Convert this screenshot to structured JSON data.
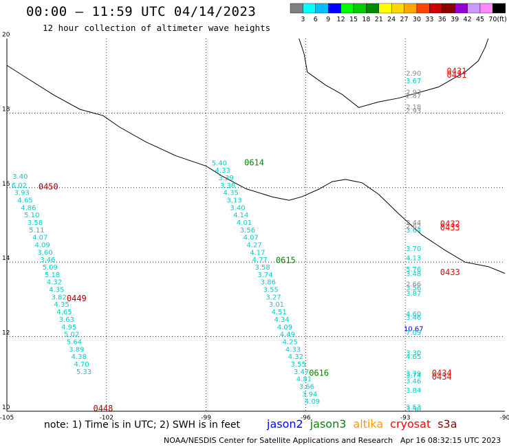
{
  "title": "00:00 – 11:59 UTC 04/14/2023",
  "subtitle": "12 hour collection of altimeter wave heights",
  "scale": {
    "unit": "(ft)",
    "ticks": [
      "3",
      "6",
      "9",
      "12",
      "15",
      "18",
      "21",
      "24",
      "27",
      "30",
      "33",
      "36",
      "39",
      "42",
      "45",
      "70"
    ],
    "colors": [
      "#7f7f7f",
      "#00ffff",
      "#00bfff",
      "#0000ff",
      "#00ff00",
      "#00cc00",
      "#008800",
      "#ffff00",
      "#ffd700",
      "#ffa500",
      "#ff4500",
      "#cc0000",
      "#8b0000",
      "#9400d3",
      "#cc99ff",
      "#ff88ff",
      "#000000"
    ]
  },
  "axes": {
    "lon_min": -105,
    "lon_max": -90,
    "lat_min": 10,
    "lat_max": 20,
    "lon_labels": [
      "-105",
      "-102",
      "-99",
      "-96",
      "-93",
      "-90"
    ],
    "lat_labels": [
      "10",
      "12",
      "14",
      "16",
      "18",
      "20"
    ]
  },
  "coast": [
    [
      -105,
      19.28
    ],
    [
      -104.4,
      18.94
    ],
    [
      -103.6,
      18.49
    ],
    [
      -102.8,
      18.1
    ],
    [
      -102.1,
      17.93
    ],
    [
      -101.6,
      17.62
    ],
    [
      -100.8,
      17.22
    ],
    [
      -99.9,
      16.85
    ],
    [
      -99.0,
      16.58
    ],
    [
      -98.5,
      16.3
    ],
    [
      -97.8,
      15.97
    ],
    [
      -97.0,
      15.75
    ],
    [
      -96.5,
      15.66
    ],
    [
      -96.1,
      15.76
    ],
    [
      -95.6,
      15.96
    ],
    [
      -95.2,
      16.16
    ],
    [
      -94.8,
      16.22
    ],
    [
      -94.3,
      16.13
    ],
    [
      -93.8,
      15.82
    ],
    [
      -93.2,
      15.3
    ],
    [
      -92.5,
      14.73
    ],
    [
      -91.8,
      14.32
    ],
    [
      -91.2,
      14.0
    ],
    [
      -90.5,
      13.88
    ],
    [
      -90,
      13.7
    ]
  ],
  "gulf_coast": [
    [
      -96.2,
      20.0
    ],
    [
      -96.05,
      19.6
    ],
    [
      -95.95,
      19.1
    ],
    [
      -95.4,
      18.75
    ],
    [
      -94.9,
      18.5
    ],
    [
      -94.4,
      18.15
    ],
    [
      -93.8,
      18.3
    ],
    [
      -93.2,
      18.4
    ],
    [
      -92.6,
      18.55
    ],
    [
      -92.0,
      18.7
    ],
    [
      -91.6,
      18.9
    ],
    [
      -91.2,
      19.1
    ],
    [
      -90.8,
      19.4
    ],
    [
      -90.6,
      19.75
    ],
    [
      -90.5,
      20.0
    ]
  ],
  "tracks": [
    {
      "name": "track-0450",
      "points": [
        {
          "lon": -104.6,
          "lat": 16.24,
          "v": "3.40"
        },
        {
          "lon": -104.63,
          "lat": 16.0,
          "v": "6.02"
        },
        {
          "lon": -104.55,
          "lat": 15.8,
          "v": "3.93"
        },
        {
          "lon": -104.45,
          "lat": 15.6,
          "v": "4.65"
        },
        {
          "lon": -104.35,
          "lat": 15.4,
          "v": "4.86"
        },
        {
          "lon": -104.25,
          "lat": 15.2,
          "v": "5.10"
        },
        {
          "lon": -104.15,
          "lat": 15.0,
          "v": "3.58"
        },
        {
          "lon": -104.1,
          "lat": 14.8,
          "v": "5.11"
        },
        {
          "lon": -104.0,
          "lat": 14.6,
          "v": "4.07"
        },
        {
          "lon": -103.93,
          "lat": 14.4,
          "v": "4.09"
        },
        {
          "lon": -103.85,
          "lat": 14.2,
          "v": "3.60"
        },
        {
          "lon": -103.77,
          "lat": 14.0,
          "v": "3.46"
        },
        {
          "lon": -103.7,
          "lat": 13.8,
          "v": "5.09"
        },
        {
          "lon": -103.63,
          "lat": 13.6,
          "v": "5.18"
        },
        {
          "lon": -103.57,
          "lat": 13.4,
          "v": "4.32"
        },
        {
          "lon": -103.5,
          "lat": 13.2,
          "v": "4.35"
        },
        {
          "lon": -103.43,
          "lat": 13.0,
          "v": "3.82"
        },
        {
          "lon": -103.35,
          "lat": 12.8,
          "v": "4.35"
        },
        {
          "lon": -103.27,
          "lat": 12.6,
          "v": "4.65"
        },
        {
          "lon": -103.2,
          "lat": 12.4,
          "v": "3.63"
        },
        {
          "lon": -103.13,
          "lat": 12.2,
          "v": "4.95"
        },
        {
          "lon": -103.05,
          "lat": 12.0,
          "v": "5.02"
        },
        {
          "lon": -102.97,
          "lat": 11.8,
          "v": "5.64"
        },
        {
          "lon": -102.9,
          "lat": 11.6,
          "v": "3.89"
        },
        {
          "lon": -102.83,
          "lat": 11.4,
          "v": "4.38"
        },
        {
          "lon": -102.75,
          "lat": 11.2,
          "v": "4.70"
        },
        {
          "lon": -102.68,
          "lat": 11.0,
          "v": "5.33"
        }
      ]
    },
    {
      "name": "track-0614",
      "points": [
        {
          "lon": -98.6,
          "lat": 16.6,
          "v": "5.40"
        },
        {
          "lon": -98.5,
          "lat": 16.4,
          "v": "4.33"
        },
        {
          "lon": -98.4,
          "lat": 16.2,
          "v": "3.39"
        },
        {
          "lon": -98.35,
          "lat": 16.0,
          "v": "3.38"
        },
        {
          "lon": -98.25,
          "lat": 15.8,
          "v": "4.35"
        },
        {
          "lon": -98.15,
          "lat": 15.6,
          "v": "3.13"
        },
        {
          "lon": -98.05,
          "lat": 15.4,
          "v": "3.40"
        },
        {
          "lon": -97.95,
          "lat": 15.2,
          "v": "4.14"
        },
        {
          "lon": -97.85,
          "lat": 15.0,
          "v": "4.01"
        },
        {
          "lon": -97.75,
          "lat": 14.8,
          "v": "3.56"
        },
        {
          "lon": -97.65,
          "lat": 14.6,
          "v": "4.07"
        },
        {
          "lon": -97.55,
          "lat": 14.4,
          "v": "4.27"
        },
        {
          "lon": -97.45,
          "lat": 14.2,
          "v": "4.17"
        },
        {
          "lon": -97.38,
          "lat": 14.0,
          "v": "4.77"
        },
        {
          "lon": -97.3,
          "lat": 13.8,
          "v": "3.58"
        },
        {
          "lon": -97.22,
          "lat": 13.6,
          "v": "3.74"
        },
        {
          "lon": -97.13,
          "lat": 13.4,
          "v": "3.86"
        },
        {
          "lon": -97.05,
          "lat": 13.2,
          "v": "3.55"
        },
        {
          "lon": -96.97,
          "lat": 13.0,
          "v": "3.27"
        },
        {
          "lon": -96.88,
          "lat": 12.8,
          "v": "3.01"
        },
        {
          "lon": -96.8,
          "lat": 12.6,
          "v": "4.51"
        },
        {
          "lon": -96.72,
          "lat": 12.4,
          "v": "4.34"
        },
        {
          "lon": -96.63,
          "lat": 12.2,
          "v": "4.09"
        },
        {
          "lon": -96.55,
          "lat": 12.0,
          "v": "4.49"
        },
        {
          "lon": -96.47,
          "lat": 11.8,
          "v": "4.25"
        },
        {
          "lon": -96.38,
          "lat": 11.6,
          "v": "4.33"
        },
        {
          "lon": -96.3,
          "lat": 11.4,
          "v": "4.32"
        },
        {
          "lon": -96.22,
          "lat": 11.2,
          "v": "3.55"
        },
        {
          "lon": -96.13,
          "lat": 11.0,
          "v": "3.47"
        },
        {
          "lon": -96.05,
          "lat": 10.8,
          "v": "4.81"
        },
        {
          "lon": -95.97,
          "lat": 10.6,
          "v": "3.66"
        },
        {
          "lon": -95.88,
          "lat": 10.4,
          "v": "3.94"
        },
        {
          "lon": -95.8,
          "lat": 10.2,
          "v": "4.09"
        }
      ]
    },
    {
      "name": "track-0432",
      "points": [
        {
          "lon": -92.75,
          "lat": 19.0,
          "v": "2.90",
          "c": "#888888"
        },
        {
          "lon": -92.75,
          "lat": 18.8,
          "v": "3.67"
        },
        {
          "lon": -92.75,
          "lat": 18.5,
          "v": "2.97",
          "c": "#888888"
        },
        {
          "lon": -92.75,
          "lat": 18.4,
          "v": "2.87",
          "c": "#888888"
        },
        {
          "lon": -92.75,
          "lat": 18.1,
          "v": "2.18",
          "c": "#888888"
        },
        {
          "lon": -92.75,
          "lat": 18.0,
          "v": "2.93",
          "c": "#888888"
        },
        {
          "lon": -92.75,
          "lat": 15.0,
          "v": "2.44",
          "c": "#888888"
        },
        {
          "lon": -92.75,
          "lat": 14.9,
          "v": "2.62",
          "c": "#888888"
        },
        {
          "lon": -92.75,
          "lat": 14.8,
          "v": "3.64"
        },
        {
          "lon": -92.75,
          "lat": 14.3,
          "v": "3.70"
        },
        {
          "lon": -92.75,
          "lat": 14.05,
          "v": "4.13"
        },
        {
          "lon": -92.75,
          "lat": 13.75,
          "v": "5.76"
        },
        {
          "lon": -92.75,
          "lat": 13.63,
          "v": "3.48"
        },
        {
          "lon": -92.75,
          "lat": 13.35,
          "v": "2.66",
          "c": "#888888"
        },
        {
          "lon": -92.75,
          "lat": 13.25,
          "v": "3.56"
        },
        {
          "lon": -92.75,
          "lat": 13.1,
          "v": "3.87"
        },
        {
          "lon": -92.75,
          "lat": 12.55,
          "v": "4.60"
        },
        {
          "lon": -92.75,
          "lat": 12.45,
          "v": "3.46"
        },
        {
          "lon": -92.75,
          "lat": 12.15,
          "v": "10.67",
          "c": "#0000cc"
        },
        {
          "lon": -92.75,
          "lat": 12.05,
          "v": "7.09"
        },
        {
          "lon": -92.75,
          "lat": 11.5,
          "v": "3.30"
        },
        {
          "lon": -92.75,
          "lat": 11.4,
          "v": "4.65"
        },
        {
          "lon": -92.75,
          "lat": 10.95,
          "v": "3.79"
        },
        {
          "lon": -92.75,
          "lat": 10.9,
          "v": "3.74"
        },
        {
          "lon": -92.75,
          "lat": 10.75,
          "v": "3.46"
        },
        {
          "lon": -92.75,
          "lat": 10.5,
          "v": "3.84"
        },
        {
          "lon": -92.75,
          "lat": 10.05,
          "v": "3.53"
        },
        {
          "lon": -92.75,
          "lat": 10.0,
          "v": "3.50"
        }
      ]
    }
  ],
  "time_labels": [
    {
      "text": "0450",
      "lon": -104.05,
      "lat": 15.95,
      "c": "#b00000"
    },
    {
      "text": "0449",
      "lon": -103.2,
      "lat": 12.95,
      "c": "#b00000"
    },
    {
      "text": "0448",
      "lon": -102.4,
      "lat": 10.0,
      "c": "#b00000"
    },
    {
      "text": "0614",
      "lon": -97.85,
      "lat": 16.6,
      "c": "#008800"
    },
    {
      "text": "0615",
      "lon": -96.9,
      "lat": 13.98,
      "c": "#008800"
    },
    {
      "text": "0616",
      "lon": -95.9,
      "lat": 10.95,
      "c": "#008800"
    },
    {
      "text": "0431",
      "lon": -91.75,
      "lat": 19.05,
      "c": "#ff0000"
    },
    {
      "text": "0431",
      "lon": -91.75,
      "lat": 18.95,
      "c": "#ff0000"
    },
    {
      "text": "0432",
      "lon": -91.95,
      "lat": 14.95,
      "c": "#ff0000"
    },
    {
      "text": "0433",
      "lon": -91.95,
      "lat": 14.85,
      "c": "#ff0000"
    },
    {
      "text": "0433",
      "lon": -91.95,
      "lat": 13.65,
      "c": "#ff0000"
    },
    {
      "text": "0434",
      "lon": -92.2,
      "lat": 10.95,
      "c": "#ff0000"
    },
    {
      "text": "0434",
      "lon": -92.2,
      "lat": 10.85,
      "c": "#ff0000"
    }
  ],
  "footer": {
    "note": "note: 1) Time is in UTC; 2) SWH is in feet",
    "legend": [
      {
        "name": "jason2",
        "color": "#0000ff"
      },
      {
        "name": "jason3",
        "color": "#008800"
      },
      {
        "name": "altika",
        "color": "#ff9900"
      },
      {
        "name": "cryosat",
        "color": "#ff0000"
      },
      {
        "name": "s3a",
        "color": "#8b0000"
      }
    ],
    "credit": "NOAA/NESDIS Center for Satellite Applications and Research",
    "stamp": "Apr 16 08:32:15 UTC 2023"
  }
}
